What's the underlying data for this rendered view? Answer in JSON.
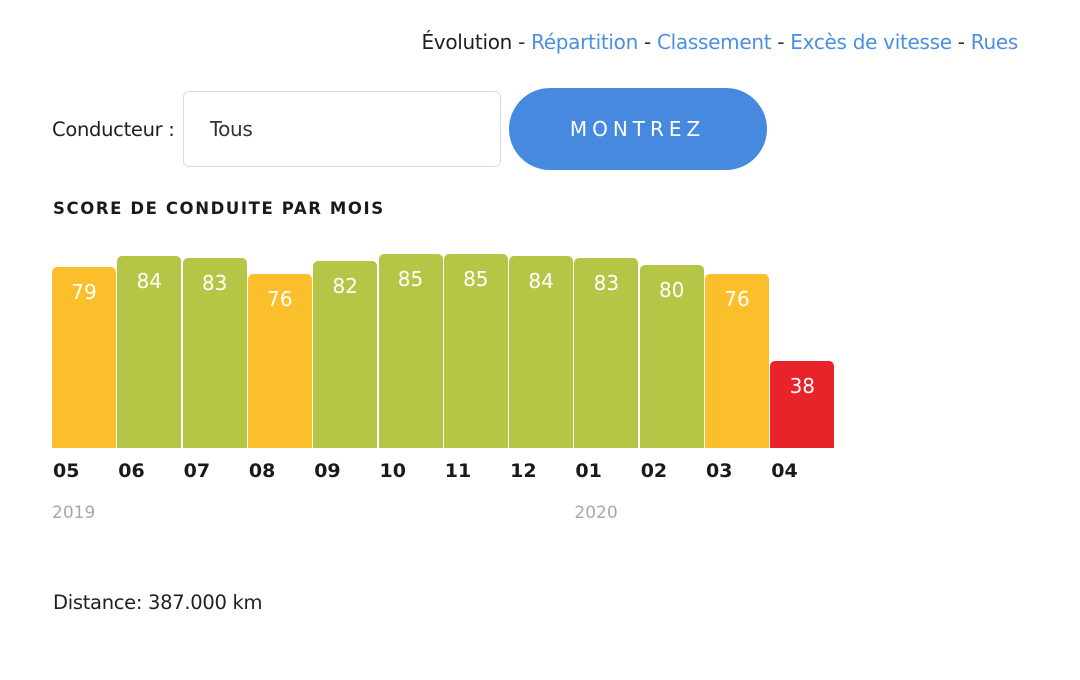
{
  "nav": {
    "items": [
      {
        "label": "Évolution",
        "current": true
      },
      {
        "label": "Répartition",
        "current": false
      },
      {
        "label": "Classement",
        "current": false
      },
      {
        "label": "Excès de vitesse",
        "current": false
      },
      {
        "label": "Rues",
        "current": false
      }
    ],
    "separator": " - "
  },
  "filter": {
    "label": "Conducteur :",
    "value": "Tous",
    "button_label": "MONTREZ"
  },
  "colors": {
    "good": "#b6c545",
    "medium": "#fbbf2c",
    "bad": "#e8232a",
    "link": "#4a8fe0",
    "button": "#4689de"
  },
  "chart_data": {
    "type": "bar",
    "title": "SCORE DE CONDUITE PAR MOIS",
    "xlabel": "",
    "ylabel": "",
    "categories": [
      "05",
      "06",
      "07",
      "08",
      "09",
      "10",
      "11",
      "12",
      "01",
      "02",
      "03",
      "04"
    ],
    "year_labels": [
      {
        "label": "2019",
        "at_index": 0
      },
      {
        "label": "2020",
        "at_index": 8
      }
    ],
    "values": [
      79,
      84,
      83,
      76,
      82,
      85,
      85,
      84,
      83,
      80,
      76,
      38
    ],
    "bar_colors": [
      "#fbbf2c",
      "#b6c545",
      "#b6c545",
      "#fbbf2c",
      "#b6c545",
      "#b6c545",
      "#b6c545",
      "#b6c545",
      "#b6c545",
      "#b6c545",
      "#fbbf2c",
      "#e8232a"
    ],
    "data_labels": true,
    "grid": false,
    "legend": "none",
    "ylim": [
      0,
      91
    ]
  },
  "distance": {
    "text": "Distance: 387.000 km"
  }
}
